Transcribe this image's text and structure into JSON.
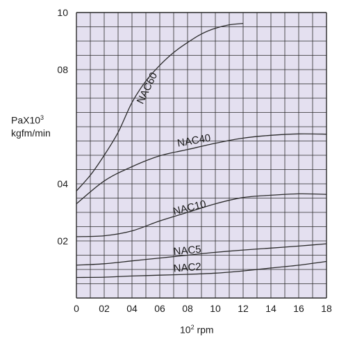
{
  "chart_data": {
    "type": "line",
    "ylabel": {
      "prefix": "PaX10",
      "exp": "3",
      "unit": "kgfm/min"
    },
    "xlabel": {
      "base": "10",
      "exp": "2",
      "unit": " rpm"
    },
    "xlim": [
      0,
      18
    ],
    "ylim": [
      0,
      10
    ],
    "grid": true,
    "x_ticks": [
      0,
      2,
      4,
      6,
      8,
      10,
      12,
      14,
      16,
      18
    ],
    "x_tick_labels": [
      "0",
      "02",
      "04",
      "06",
      "08",
      "10",
      "12",
      "14",
      "16",
      "18"
    ],
    "y_ticks": [
      2,
      4,
      8,
      10
    ],
    "y_tick_labels": [
      "02",
      "04",
      "08",
      "10"
    ],
    "series": [
      {
        "name": "NAC60",
        "x": [
          0,
          1,
          2,
          3,
          4,
          5,
          6,
          7,
          8,
          9,
          10,
          11,
          12
        ],
        "y": [
          3.75,
          4.3,
          5.0,
          5.8,
          6.85,
          7.6,
          8.15,
          8.6,
          8.95,
          9.25,
          9.45,
          9.57,
          9.62
        ],
        "label_at": [
          5.3,
          7.3
        ],
        "label_angle": -64
      },
      {
        "name": "NAC40",
        "x": [
          0,
          2,
          4,
          6,
          8,
          10,
          12,
          14,
          16,
          18
        ],
        "y": [
          3.3,
          4.1,
          4.6,
          4.98,
          5.2,
          5.42,
          5.6,
          5.7,
          5.75,
          5.74
        ],
        "label_at": [
          8.5,
          5.4
        ],
        "label_angle": -10
      },
      {
        "name": "NAC10",
        "x": [
          0,
          2,
          4,
          6,
          8,
          10,
          12,
          14,
          16,
          18
        ],
        "y": [
          2.15,
          2.18,
          2.35,
          2.7,
          3.0,
          3.3,
          3.52,
          3.6,
          3.65,
          3.63
        ],
        "label_at": [
          8.2,
          3.05
        ],
        "label_angle": -14
      },
      {
        "name": "NAC5",
        "x": [
          0,
          2,
          4,
          6,
          8,
          10,
          12,
          14,
          16,
          18
        ],
        "y": [
          1.15,
          1.2,
          1.3,
          1.4,
          1.5,
          1.6,
          1.68,
          1.75,
          1.82,
          1.9
        ],
        "label_at": [
          8.0,
          1.55
        ],
        "label_angle": -5
      },
      {
        "name": "NAC2",
        "x": [
          0,
          2,
          4,
          6,
          8,
          10,
          12,
          14,
          16,
          18
        ],
        "y": [
          0.72,
          0.73,
          0.77,
          0.8,
          0.83,
          0.87,
          0.95,
          1.05,
          1.15,
          1.28
        ],
        "label_at": [
          8.0,
          0.95
        ],
        "label_angle": -4
      }
    ],
    "colors": {
      "plot_bg": "#e4e0f0",
      "grid": "#2a2a2a",
      "line": "#2a2a2a"
    }
  }
}
